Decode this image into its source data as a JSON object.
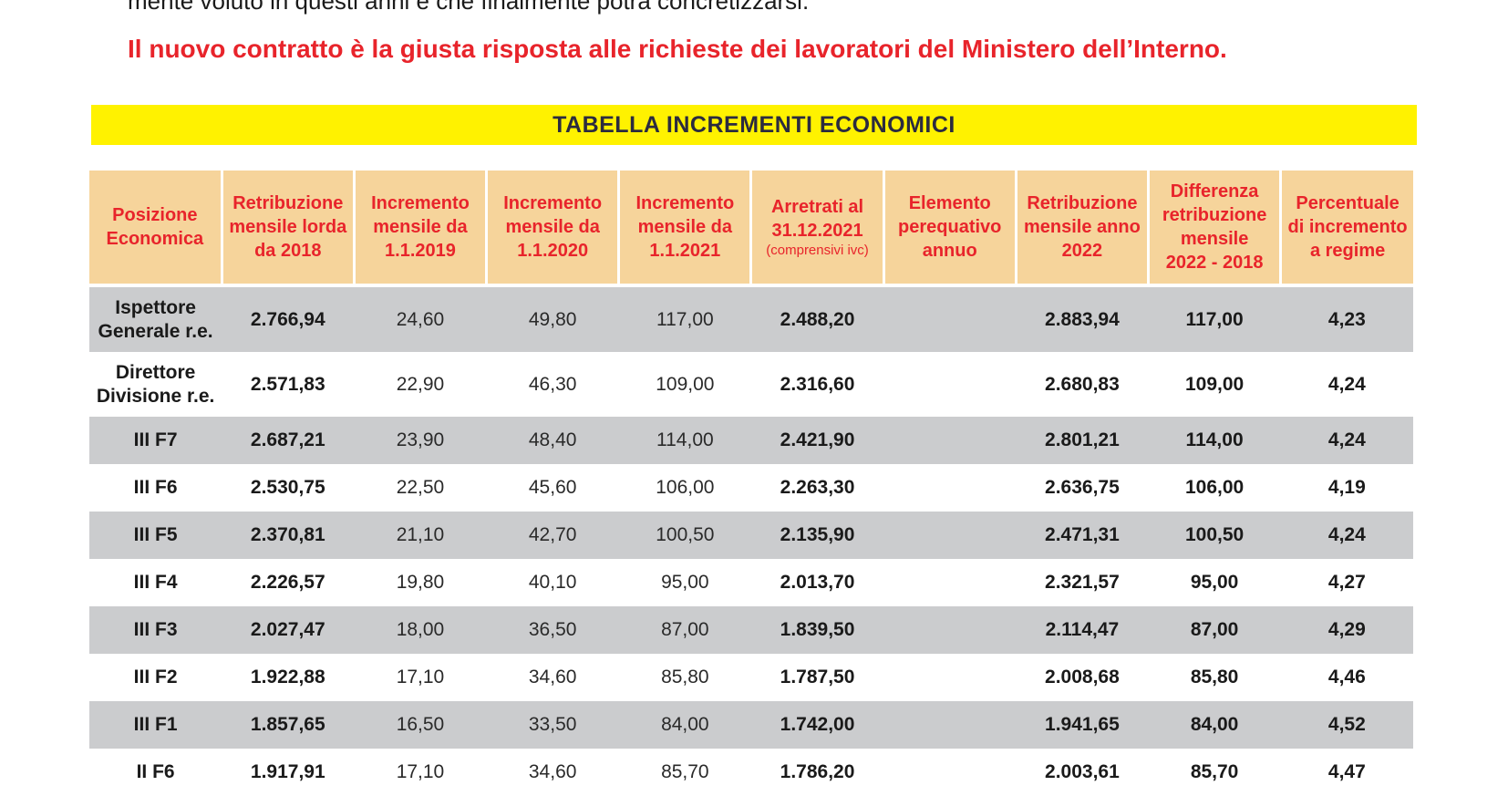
{
  "intro": {
    "text": "mente voluto in questi anni e che finalmente potrà concretizzarsi."
  },
  "headline": "Il nuovo contratto è la giusta risposta alle richieste dei lavoratori del Ministero dell’Interno.",
  "banner": {
    "title": "TABELLA INCREMENTI ECONOMICI",
    "color": "#fff200"
  },
  "colors": {
    "header_bg": "#f6d49b",
    "header_text": "#e8242b",
    "row_shade": "#cbccce"
  },
  "table": {
    "headers": [
      {
        "lines": [
          "Posizione",
          "Economica"
        ],
        "note": ""
      },
      {
        "lines": [
          "Retribuzione",
          "mensile lorda",
          "da 2018"
        ],
        "note": ""
      },
      {
        "lines": [
          "Incremento",
          "mensile da",
          "1.1.2019"
        ],
        "note": ""
      },
      {
        "lines": [
          "Incremento",
          "mensile da",
          "1.1.2020"
        ],
        "note": ""
      },
      {
        "lines": [
          "Incremento",
          "mensile da",
          "1.1.2021"
        ],
        "note": ""
      },
      {
        "lines": [
          "Arretrati al",
          "31.12.2021"
        ],
        "note": "(comprensivi ivc)"
      },
      {
        "lines": [
          "Elemento",
          "perequativo",
          "annuo"
        ],
        "note": ""
      },
      {
        "lines": [
          "Retribuzione",
          "mensile anno",
          "2022"
        ],
        "note": ""
      },
      {
        "lines": [
          "Differenza",
          "retribuzione",
          "mensile",
          "2022 - 2018"
        ],
        "note": ""
      },
      {
        "lines": [
          "Percentuale",
          "di incremento",
          "a regime"
        ],
        "note": ""
      }
    ],
    "rows": [
      {
        "pos": [
          "Ispettore",
          "Generale r.e."
        ],
        "base": "2.766,94",
        "inc2019": "24,60",
        "inc2020": "49,80",
        "inc2021": "117,00",
        "arretrati": "2.488,20",
        "perequativo": "",
        "retr2022": "2.883,94",
        "diff": "117,00",
        "perc": "4,23"
      },
      {
        "pos": [
          "Direttore",
          "Divisione r.e."
        ],
        "base": "2.571,83",
        "inc2019": "22,90",
        "inc2020": "46,30",
        "inc2021": "109,00",
        "arretrati": "2.316,60",
        "perequativo": "",
        "retr2022": "2.680,83",
        "diff": "109,00",
        "perc": "4,24"
      },
      {
        "pos": [
          "III F7"
        ],
        "base": "2.687,21",
        "inc2019": "23,90",
        "inc2020": "48,40",
        "inc2021": "114,00",
        "arretrati": "2.421,90",
        "perequativo": "",
        "retr2022": "2.801,21",
        "diff": "114,00",
        "perc": "4,24"
      },
      {
        "pos": [
          "III F6"
        ],
        "base": "2.530,75",
        "inc2019": "22,50",
        "inc2020": "45,60",
        "inc2021": "106,00",
        "arretrati": "2.263,30",
        "perequativo": "",
        "retr2022": "2.636,75",
        "diff": "106,00",
        "perc": "4,19"
      },
      {
        "pos": [
          "III F5"
        ],
        "base": "2.370,81",
        "inc2019": "21,10",
        "inc2020": "42,70",
        "inc2021": "100,50",
        "arretrati": "2.135,90",
        "perequativo": "",
        "retr2022": "2.471,31",
        "diff": "100,50",
        "perc": "4,24"
      },
      {
        "pos": [
          "III F4"
        ],
        "base": "2.226,57",
        "inc2019": "19,80",
        "inc2020": "40,10",
        "inc2021": "95,00",
        "arretrati": "2.013,70",
        "perequativo": "",
        "retr2022": "2.321,57",
        "diff": "95,00",
        "perc": "4,27"
      },
      {
        "pos": [
          "III F3"
        ],
        "base": "2.027,47",
        "inc2019": "18,00",
        "inc2020": "36,50",
        "inc2021": "87,00",
        "arretrati": "1.839,50",
        "perequativo": "",
        "retr2022": "2.114,47",
        "diff": "87,00",
        "perc": "4,29"
      },
      {
        "pos": [
          "III F2"
        ],
        "base": "1.922,88",
        "inc2019": "17,10",
        "inc2020": "34,60",
        "inc2021": "85,80",
        "arretrati": "1.787,50",
        "perequativo": "",
        "retr2022": "2.008,68",
        "diff": "85,80",
        "perc": "4,46"
      },
      {
        "pos": [
          "III F1"
        ],
        "base": "1.857,65",
        "inc2019": "16,50",
        "inc2020": "33,50",
        "inc2021": "84,00",
        "arretrati": "1.742,00",
        "perequativo": "",
        "retr2022": "1.941,65",
        "diff": "84,00",
        "perc": "4,52"
      },
      {
        "pos": [
          "II F6"
        ],
        "base": "1.917,91",
        "inc2019": "17,10",
        "inc2020": "34,60",
        "inc2021": "85,70",
        "arretrati": "1.786,20",
        "perequativo": "",
        "retr2022": "2.003,61",
        "diff": "85,70",
        "perc": "4,47"
      }
    ]
  }
}
